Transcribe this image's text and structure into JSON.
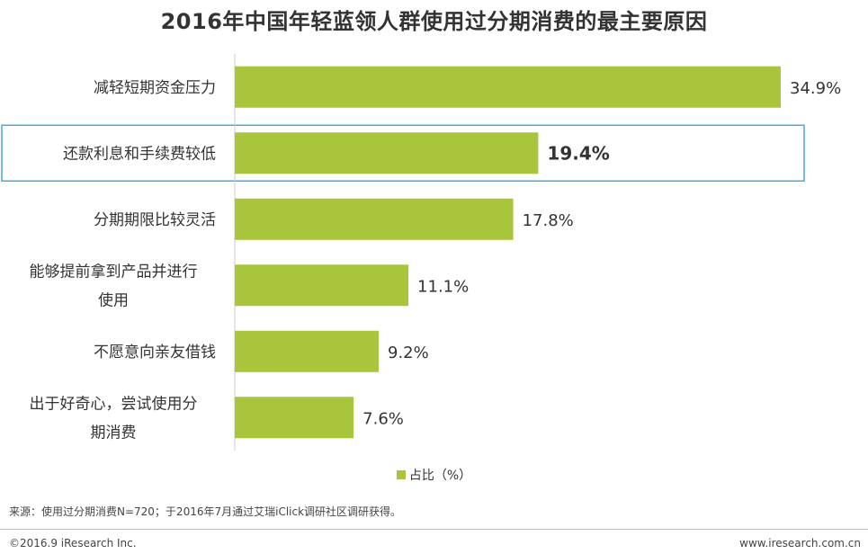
{
  "title": "2016年中国年轻蓝领人群使用过分期消费的最主要原因",
  "chart_data": {
    "type": "bar",
    "orientation": "horizontal",
    "categories": [
      [
        "减轻短期资金压力"
      ],
      [
        "还款利息和手续费较低"
      ],
      [
        "分期期限比较灵活"
      ],
      [
        "能够提前拿到产品并进行",
        "使用"
      ],
      [
        "不愿意向亲友借钱"
      ],
      [
        "出于好奇心，尝试使用分",
        "期消费"
      ]
    ],
    "values": [
      34.9,
      19.4,
      17.8,
      11.1,
      9.2,
      7.6
    ],
    "value_labels": [
      "34.9%",
      "19.4%",
      "17.8%",
      "11.1%",
      "9.2%",
      "7.6%"
    ],
    "highlight_index": 1,
    "series": [
      {
        "name": "占比（%）",
        "color": "#a9c53c"
      }
    ],
    "xlim": [
      0,
      40
    ],
    "legend_position": "bottom",
    "grid": false
  },
  "colors": {
    "bar": "#a9c53c",
    "highlight_border": "#4ba8d6",
    "axis": "#cccccc"
  },
  "legend": {
    "label": "占比（%）"
  },
  "source": "来源：使用过分期消费N=720；于2016年7月通过艾瑞iClick调研社区调研获得。",
  "footer": {
    "copyright": "©2016.9 iResearch Inc.",
    "website": "www.iresearch.com.cn"
  }
}
